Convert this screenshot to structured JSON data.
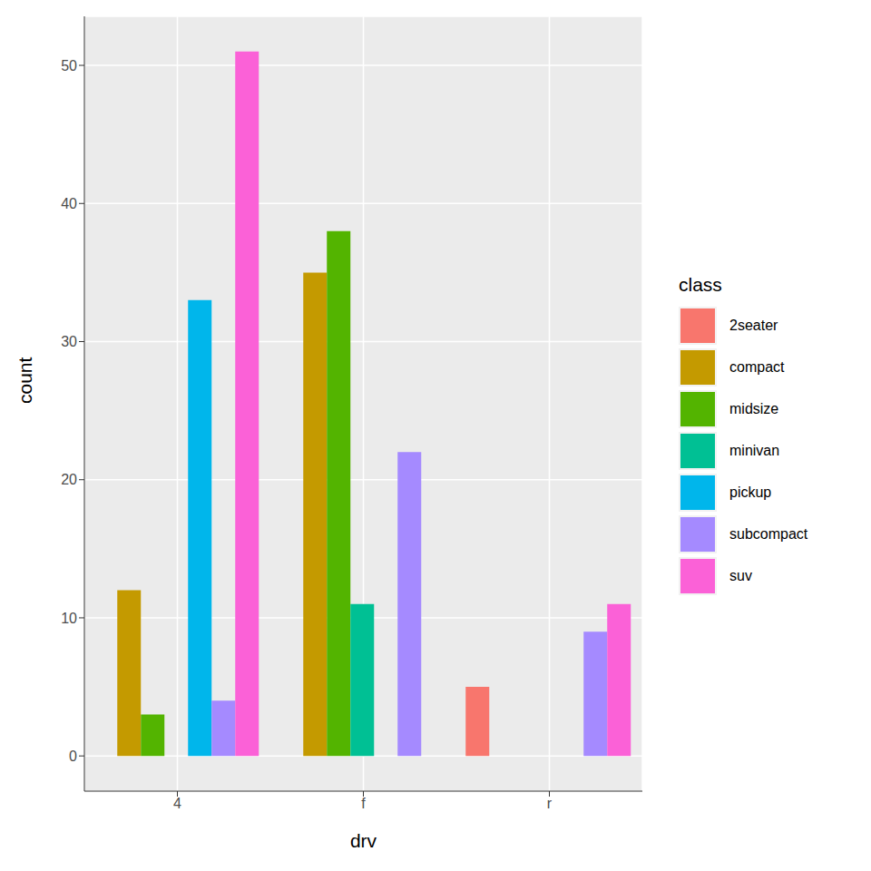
{
  "chart_data": {
    "type": "bar",
    "x_label": "drv",
    "y_label": "count",
    "legend_title": "class",
    "categories": [
      "4",
      "f",
      "r"
    ],
    "series": [
      {
        "name": "2seater",
        "color": "#F8766D",
        "values": [
          null,
          null,
          5
        ]
      },
      {
        "name": "compact",
        "color": "#C49A00",
        "values": [
          12,
          35,
          null
        ]
      },
      {
        "name": "midsize",
        "color": "#53B400",
        "values": [
          3,
          38,
          null
        ]
      },
      {
        "name": "minivan",
        "color": "#00C094",
        "values": [
          null,
          11,
          null
        ]
      },
      {
        "name": "pickup",
        "color": "#00B6EB",
        "values": [
          33,
          null,
          null
        ]
      },
      {
        "name": "subcompact",
        "color": "#A58AFF",
        "values": [
          4,
          22,
          9
        ]
      },
      {
        "name": "suv",
        "color": "#FB61D7",
        "values": [
          51,
          null,
          11
        ]
      }
    ],
    "ylim": [
      -2.55,
      53.55
    ],
    "yticks": [
      0,
      10,
      20,
      30,
      40,
      50
    ],
    "grid": true,
    "legend": "right"
  }
}
